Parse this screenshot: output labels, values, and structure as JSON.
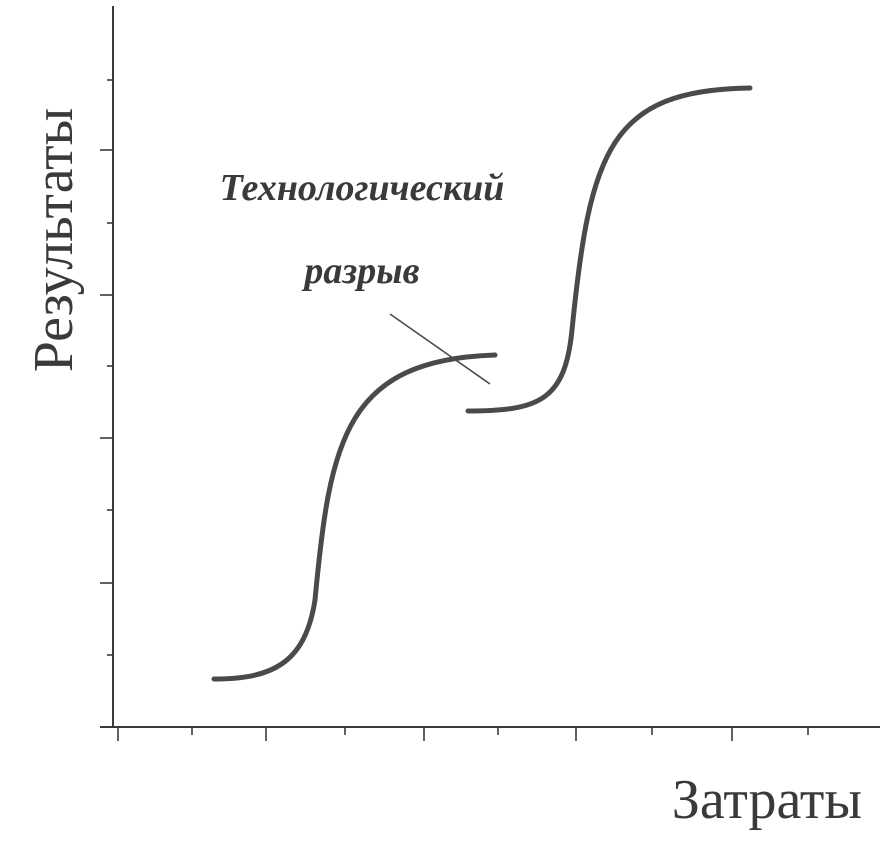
{
  "diagram": {
    "y_axis_label": "Результаты",
    "x_axis_label": "Затраты",
    "annotation": {
      "line1": "Технологический",
      "line2": "разрыв"
    },
    "curves": [
      {
        "name": "s-curve-1"
      },
      {
        "name": "s-curve-2"
      }
    ]
  }
}
